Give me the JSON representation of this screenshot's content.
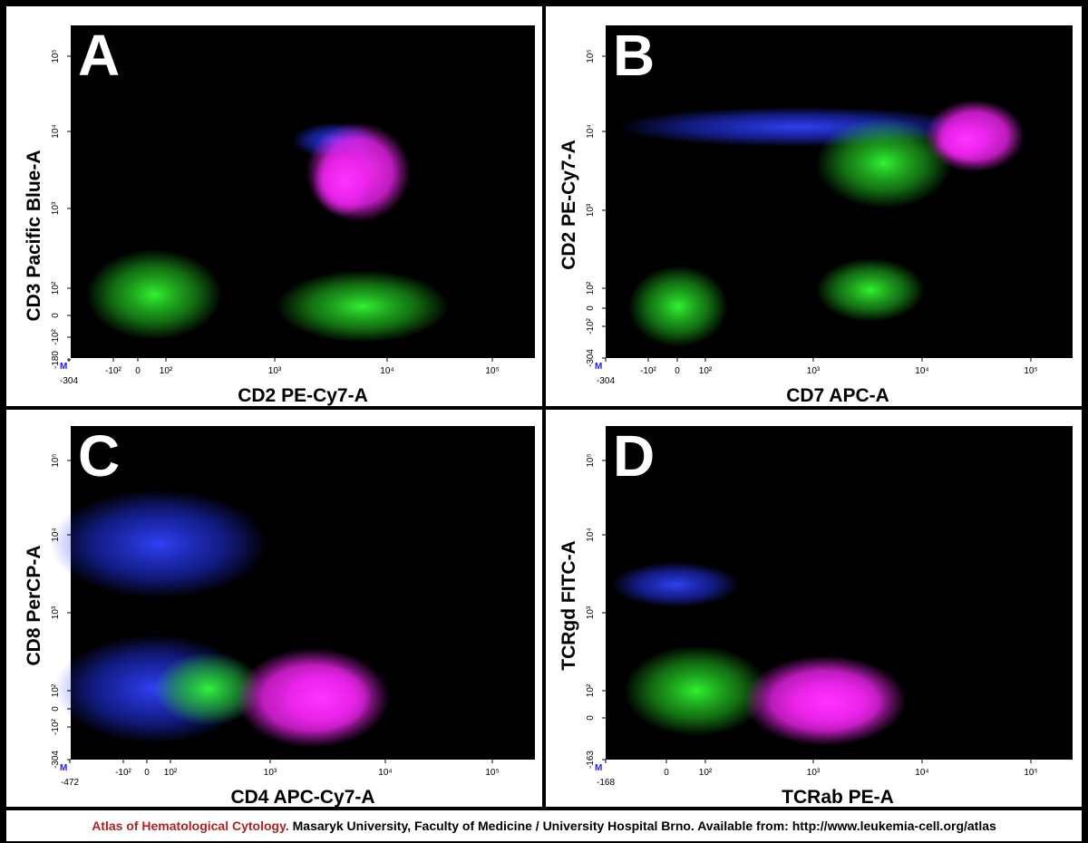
{
  "panels": [
    {
      "letter": "A",
      "y_label": "CD3 Pacific Blue-A",
      "x_label": "CD2 PE-Cy7-A",
      "marker": "M",
      "y_ticks": [
        "10⁵",
        "10⁴",
        "10³",
        "10²",
        "0",
        "-10²",
        "-180"
      ],
      "x_ticks": [
        "-304",
        "-10²",
        "0",
        "10²",
        "10³",
        "10⁴",
        "10⁵"
      ]
    },
    {
      "letter": "B",
      "y_label": "CD2 PE-Cy7-A",
      "x_label": "CD7 APC-A",
      "marker": "M",
      "y_ticks": [
        "10⁵",
        "10⁴",
        "10³",
        "10²",
        "0",
        "-10²",
        "-304"
      ],
      "x_ticks": [
        "-304",
        "-10²",
        "0",
        "10²",
        "10³",
        "10⁴",
        "10⁵"
      ]
    },
    {
      "letter": "C",
      "y_label": "CD8 PerCP-A",
      "x_label": "CD4 APC-Cy7-A",
      "marker": "M",
      "y_ticks": [
        "10⁵",
        "10⁴",
        "10³",
        "10²",
        "0",
        "-10²",
        "-304"
      ],
      "x_ticks": [
        "-472",
        "-10²",
        "0",
        "10²",
        "10³",
        "10⁴",
        "10⁵"
      ]
    },
    {
      "letter": "D",
      "y_label": "TCRgd FITC-A",
      "x_label": "TCRab PE-A",
      "marker": "M",
      "y_ticks": [
        "10⁵",
        "10⁴",
        "10³",
        "10²",
        "0",
        "-163"
      ],
      "x_ticks": [
        "-168",
        "0",
        "10²",
        "10³",
        "10⁴",
        "10⁵"
      ]
    }
  ],
  "footer": {
    "source": "Atlas of Hematological Cytology.",
    "text": "Masaryk University, Faculty of Medicine / University Hospital Brno. Available from: http://www.leukemia-cell.org/atlas"
  }
}
